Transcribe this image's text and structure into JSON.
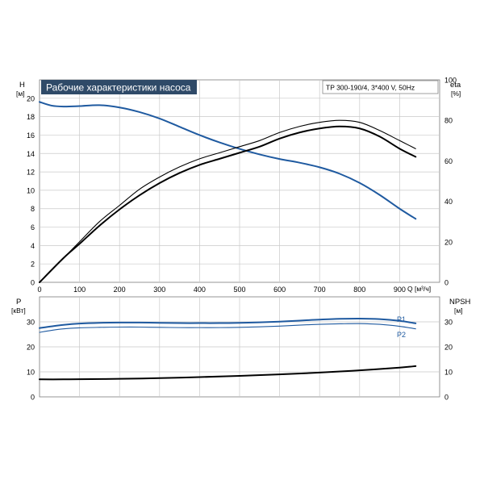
{
  "chart_data": [
    {
      "type": "line",
      "title": "Рабочие характеристики насоса",
      "model_label": "TP 300-190/4, 3*400 V, 50Hz",
      "xlabel": "Q [м³/ч]",
      "ylabel_name": "H",
      "ylabel_unit": "[м]",
      "y2label_name": "eta",
      "y2label_unit": "[%]",
      "xlim": [
        0,
        1000
      ],
      "ylim": [
        0,
        22
      ],
      "y2lim": [
        0,
        100
      ],
      "x_ticks": [
        "0",
        "100",
        "200",
        "300",
        "400",
        "500",
        "600",
        "700",
        "800",
        "900"
      ],
      "y_ticks": [
        "0",
        "2",
        "4",
        "6",
        "8",
        "10",
        "12",
        "14",
        "16",
        "18",
        "20"
      ],
      "y2_ticks": [
        "0",
        "20",
        "40",
        "60",
        "80",
        "100"
      ],
      "grid": true,
      "series": [
        {
          "axis": "H",
          "color": "#1f5aa0",
          "x": [
            0,
            30,
            60,
            100,
            150,
            200,
            250,
            300,
            350,
            400,
            450,
            500,
            550,
            600,
            650,
            700,
            750,
            800,
            850,
            900,
            940
          ],
          "values": [
            19.6,
            19.2,
            19.1,
            19.15,
            19.25,
            19.0,
            18.5,
            17.8,
            16.9,
            16.0,
            15.2,
            14.5,
            13.9,
            13.4,
            13.0,
            12.5,
            11.8,
            10.8,
            9.5,
            8.0,
            6.9
          ]
        },
        {
          "axis": "eta",
          "color": "#000000",
          "x": [
            0,
            60,
            100,
            150,
            200,
            250,
            300,
            350,
            400,
            450,
            500,
            550,
            600,
            650,
            700,
            750,
            800,
            850,
            900,
            940
          ],
          "values": [
            0,
            12,
            19,
            28,
            36,
            43,
            49,
            54,
            58,
            61,
            64,
            67,
            71,
            74,
            76,
            77,
            76,
            72,
            66,
            62
          ]
        },
        {
          "axis": "eta",
          "color": "#000000",
          "x": [
            0,
            60,
            100,
            150,
            200,
            250,
            300,
            350,
            400,
            450,
            500,
            550,
            600,
            650,
            700,
            750,
            800,
            850,
            900,
            940
          ],
          "values": [
            0,
            12,
            20,
            30,
            38,
            46,
            52,
            57,
            61,
            64,
            67,
            70,
            74,
            77,
            79,
            80,
            79,
            75,
            70,
            66
          ]
        }
      ]
    },
    {
      "type": "line",
      "ylabel_name": "P",
      "ylabel_unit": "[кВт]",
      "y2label_name": "NPSH",
      "y2label_unit": "[м]",
      "xlim": [
        0,
        1000
      ],
      "ylim": [
        0,
        40
      ],
      "y2lim": [
        0,
        40
      ],
      "y_ticks": [
        "0",
        "10",
        "20",
        "30"
      ],
      "y2_ticks": [
        "0",
        "10",
        "20",
        "30"
      ],
      "grid": true,
      "series": [
        {
          "name": "P1",
          "color": "#1f5aa0",
          "x": [
            0,
            30,
            60,
            100,
            150,
            200,
            250,
            300,
            350,
            400,
            450,
            500,
            550,
            600,
            650,
            700,
            750,
            800,
            850,
            900,
            940
          ],
          "values": [
            27.5,
            28.2,
            28.8,
            29.3,
            29.6,
            29.7,
            29.7,
            29.6,
            29.5,
            29.5,
            29.5,
            29.6,
            29.8,
            30.1,
            30.5,
            30.9,
            31.2,
            31.3,
            31.1,
            30.4,
            29.4
          ]
        },
        {
          "name": "P2",
          "color": "#1f5aa0",
          "x": [
            0,
            30,
            60,
            100,
            150,
            200,
            250,
            300,
            350,
            400,
            450,
            500,
            550,
            600,
            650,
            700,
            750,
            800,
            850,
            900,
            940
          ],
          "values": [
            25.8,
            26.6,
            27.2,
            27.6,
            27.8,
            27.9,
            27.9,
            27.8,
            27.7,
            27.7,
            27.7,
            27.8,
            28.0,
            28.3,
            28.7,
            29.0,
            29.2,
            29.3,
            29.0,
            28.2,
            27.2
          ]
        },
        {
          "axis": "NPSH",
          "color": "#000000",
          "x": [
            0,
            60,
            100,
            200,
            300,
            400,
            500,
            600,
            700,
            800,
            900,
            940
          ],
          "values": [
            7.0,
            7.0,
            7.05,
            7.2,
            7.5,
            7.9,
            8.4,
            9.0,
            9.7,
            10.6,
            11.7,
            12.3
          ]
        }
      ]
    }
  ]
}
